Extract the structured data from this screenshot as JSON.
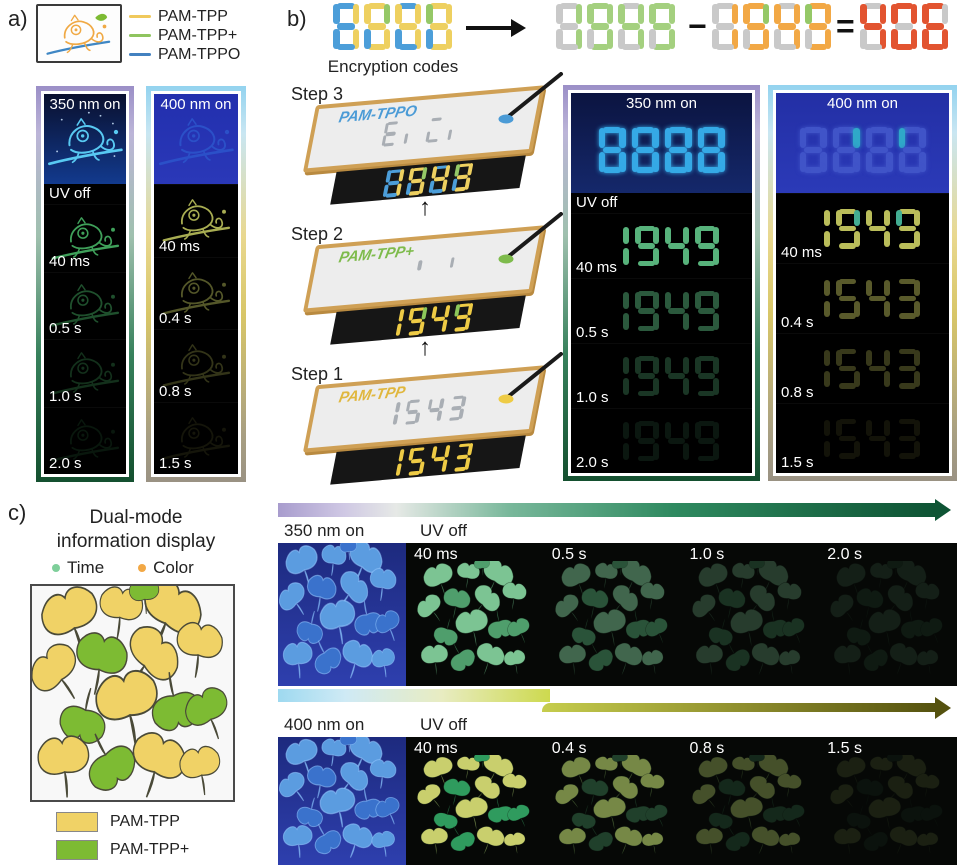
{
  "panels": {
    "a": {
      "label": "a)",
      "legend": [
        {
          "label": "PAM-TPP",
          "color": "#f0c95c"
        },
        {
          "label": "PAM-TPP+",
          "color": "#8fc45f"
        },
        {
          "label": "PAM-TPPO",
          "color": "#4381c0"
        }
      ],
      "columns": [
        {
          "header": "350 nm on",
          "uv_off": "UV off",
          "on_stroke": "#58c9f2",
          "glow_stroke": "#3fa05a",
          "frames": [
            {
              "label": "40 ms",
              "opacity": 1
            },
            {
              "label": "0.5 s",
              "opacity": 0.5
            },
            {
              "label": "1.0 s",
              "opacity": 0.3
            },
            {
              "label": "2.0 s",
              "opacity": 0.14
            }
          ]
        },
        {
          "header": "400 nm on",
          "uv_off": "",
          "on_stroke": "#2b50c8",
          "glow_stroke": "#a8ad52",
          "frames": [
            {
              "label": "40 ms",
              "opacity": 1
            },
            {
              "label": "0.4 s",
              "opacity": 0.5
            },
            {
              "label": "0.8 s",
              "opacity": 0.3
            },
            {
              "label": "1.5 s",
              "opacity": 0.12
            }
          ]
        }
      ]
    },
    "b": {
      "label": "b)",
      "caption": "Encryption codes",
      "minus": "−",
      "equals": "=",
      "up_arrow": "↑",
      "groups": {
        "code": [
          [
            "#4c9ed9",
            "#eed060",
            "#eed060",
            "#4c9ed9",
            "#4c9ed9",
            "#4c9ed9",
            "#4c9ed9"
          ],
          [
            "#eed060",
            "#95c867",
            "#eed060",
            "#eed060",
            "#4c9ed9",
            "#eed060",
            "#eed060"
          ],
          [
            "#4c9ed9",
            "#eed060",
            "#eed060",
            "#4c9ed9",
            "#4c9ed9",
            "#eed060",
            "#eed060"
          ],
          [
            "#eed060",
            "#eed060",
            "#eed060",
            "#eed060",
            "#4c9ed9",
            "#95c867",
            "#eed060"
          ]
        ],
        "green": [
          [
            "#c9c9c9",
            "#a4d07f",
            "#a4d07f",
            "#c9c9c9",
            "#c9c9c9",
            "#c9c9c9",
            "#c9c9c9"
          ],
          [
            "#a4d07f",
            "#a4d07f",
            "#a4d07f",
            "#a4d07f",
            "#c9c9c9",
            "#a4d07f",
            "#a4d07f"
          ],
          [
            "#c9c9c9",
            "#a4d07f",
            "#a4d07f",
            "#c9c9c9",
            "#c9c9c9",
            "#a4d07f",
            "#a4d07f"
          ],
          [
            "#a4d07f",
            "#a4d07f",
            "#a4d07f",
            "#a4d07f",
            "#c9c9c9",
            "#a4d07f",
            "#a4d07f"
          ]
        ],
        "orange": [
          [
            "#c9c9c9",
            "#f2a845",
            "#f2a845",
            "#c9c9c9",
            "#c9c9c9",
            "#c9c9c9",
            "#c9c9c9"
          ],
          [
            "#f2a845",
            "#95c867",
            "#f2a845",
            "#f2a845",
            "#c9c9c9",
            "#f2a845",
            "#f2a845"
          ],
          [
            "#c9c9c9",
            "#f2a845",
            "#f2a845",
            "#c9c9c9",
            "#c9c9c9",
            "#f2a845",
            "#f2a845"
          ],
          [
            "#f2a845",
            "#f2a845",
            "#f2a845",
            "#f2a845",
            "#c9c9c9",
            "#95c867",
            "#f2a845"
          ]
        ],
        "result": [
          [
            "#c9c9c9",
            "#e25430",
            "#e25430",
            "#c9c9c9",
            "#c9c9c9",
            "#e25430",
            "#e25430"
          ],
          [
            "#e25430",
            "#e25430",
            "#e25430",
            "#e25430",
            "#e25430",
            "#e25430",
            "#c9c9c9"
          ],
          [
            "#e25430",
            "#c9c9c9",
            "#e25430",
            "#e25430",
            "#e25430",
            "#e25430",
            "#e25430"
          ]
        ]
      },
      "steps": [
        {
          "label": "Step 3",
          "material": "PAM-TPPO",
          "material_color": "#4b9bd6",
          "ink": "#4b9bd6",
          "stencil": [
            [
              "#a9aeb4",
              "T",
              "T",
              "#a9aeb4",
              "#a9aeb4",
              "#a9aeb4",
              "#a9aeb4"
            ],
            [
              "T",
              "T",
              "T",
              "T",
              "#a9aeb4",
              "T",
              "T"
            ],
            [
              "#a9aeb4",
              "T",
              "T",
              "#a9aeb4",
              "#a9aeb4",
              "T",
              "T"
            ],
            [
              "T",
              "T",
              "T",
              "T",
              "#a9aeb4",
              "T",
              "T"
            ]
          ],
          "display": [
            [
              "#4c9ed9",
              "#eed060",
              "#eed060",
              "#4c9ed9",
              "#4c9ed9",
              "#4c9ed9",
              "#4c9ed9"
            ],
            [
              "#eed060",
              "#95c867",
              "#eed060",
              "#eed060",
              "#4c9ed9",
              "#eed060",
              "#eed060"
            ],
            [
              "#4c9ed9",
              "#eed060",
              "#eed060",
              "#4c9ed9",
              "#4c9ed9",
              "#eed060",
              "#eed060"
            ],
            [
              "#eed060",
              "#eed060",
              "#eed060",
              "#eed060",
              "#4c9ed9",
              "#95c867",
              "#eed060"
            ]
          ]
        },
        {
          "label": "Step 2",
          "material": "PAM-TPP+",
          "material_color": "#7ebb4c",
          "ink": "#7ebb4c",
          "stencil": [
            [
              "T",
              "T",
              "T",
              "T",
              "T",
              "T",
              "T"
            ],
            [
              "T",
              "#a9aeb4",
              "T",
              "T",
              "T",
              "T",
              "T"
            ],
            [
              "T",
              "T",
              "T",
              "T",
              "T",
              "T",
              "T"
            ],
            [
              "T",
              "T",
              "T",
              "T",
              "T",
              "#a9aeb4",
              "T"
            ]
          ],
          "display": [
            [
              "T",
              "#eecb45",
              "#eecb45",
              "T",
              "T",
              "T",
              "T"
            ],
            [
              "#eecb45",
              "#8cc75a",
              "#eecb45",
              "#eecb45",
              "T",
              "#eecb45",
              "#eecb45"
            ],
            [
              "T",
              "#eecb45",
              "#eecb45",
              "T",
              "T",
              "#eecb45",
              "#eecb45"
            ],
            [
              "#eecb45",
              "#eecb45",
              "#eecb45",
              "#eecb45",
              "T",
              "#8cc75a",
              "#eecb45"
            ]
          ]
        },
        {
          "label": "Step 1",
          "material": "PAM-TPP",
          "material_color": "#e0b73e",
          "ink": "#eecb45",
          "stencil": [
            [
              "T",
              "#a9aeb4",
              "#a9aeb4",
              "T",
              "T",
              "T",
              "T"
            ],
            [
              "#a9aeb4",
              "T",
              "#a9aeb4",
              "#a9aeb4",
              "T",
              "#a9aeb4",
              "#a9aeb4"
            ],
            [
              "T",
              "#a9aeb4",
              "#a9aeb4",
              "T",
              "T",
              "#a9aeb4",
              "#a9aeb4"
            ],
            [
              "#a9aeb4",
              "#a9aeb4",
              "#a9aeb4",
              "#a9aeb4",
              "T",
              "T",
              "#a9aeb4"
            ]
          ],
          "display": [
            [
              "T",
              "#eecb45",
              "#eecb45",
              "T",
              "T",
              "T",
              "T"
            ],
            [
              "#eecb45",
              "T",
              "#eecb45",
              "#eecb45",
              "T",
              "#eecb45",
              "#eecb45"
            ],
            [
              "T",
              "#eecb45",
              "#eecb45",
              "T",
              "T",
              "#eecb45",
              "#eecb45"
            ],
            [
              "#eecb45",
              "#eecb45",
              "#eecb45",
              "#eecb45",
              "T",
              "T",
              "#eecb45"
            ]
          ]
        }
      ],
      "columns": [
        {
          "header": "350 nm on",
          "uv_off": "UV off",
          "on_digits": [
            [
              "#35a9e6",
              "#35a9e6",
              "#35a9e6",
              "#35a9e6",
              "#35a9e6",
              "#35a9e6",
              "#35a9e6"
            ],
            [
              "#35a9e6",
              "#35a9e6",
              "#35a9e6",
              "#35a9e6",
              "#35a9e6",
              "#35a9e6",
              "#35a9e6"
            ],
            [
              "#35a9e6",
              "#35a9e6",
              "#35a9e6",
              "#35a9e6",
              "#35a9e6",
              "#35a9e6",
              "#35a9e6"
            ],
            [
              "#35a9e6",
              "#35a9e6",
              "#35a9e6",
              "#35a9e6",
              "#35a9e6",
              "#35a9e6",
              "#35a9e6"
            ]
          ],
          "digits_first": [
            [
              "T",
              "#57b27b",
              "#57b27b",
              "T",
              "T",
              "T",
              "T"
            ],
            [
              "#57b27b",
              "#57b27b",
              "#57b27b",
              "#57b27b",
              "T",
              "#57b27b",
              "#57b27b"
            ],
            [
              "T",
              "#57b27b",
              "#57b27b",
              "T",
              "T",
              "#57b27b",
              "#57b27b"
            ],
            [
              "#57b27b",
              "#57b27b",
              "#57b27b",
              "#57b27b",
              "T",
              "#57b27b",
              "#57b27b"
            ]
          ],
          "digits_rest": [
            [
              "T",
              "#57b27b",
              "#57b27b",
              "T",
              "T",
              "T",
              "T"
            ],
            [
              "#57b27b",
              "#57b27b",
              "#57b27b",
              "#57b27b",
              "T",
              "#57b27b",
              "#57b27b"
            ],
            [
              "T",
              "#57b27b",
              "#57b27b",
              "T",
              "T",
              "#57b27b",
              "#57b27b"
            ],
            [
              "#57b27b",
              "#57b27b",
              "#57b27b",
              "#57b27b",
              "T",
              "#57b27b",
              "#57b27b"
            ]
          ],
          "frames": [
            {
              "label": "40 ms",
              "opacity": 1
            },
            {
              "label": "0.5 s",
              "opacity": 0.5
            },
            {
              "label": "1.0 s",
              "opacity": 0.3
            },
            {
              "label": "2.0 s",
              "opacity": 0.13
            }
          ]
        },
        {
          "header": "400 nm on",
          "uv_off": "",
          "on_digits": [
            [
              "#4054c8",
              "#4054c8",
              "#4054c8",
              "#4054c8",
              "#4054c8",
              "#4054c8",
              "#4054c8"
            ],
            [
              "#4054c8",
              "#2fa8c8",
              "#4054c8",
              "#4054c8",
              "#4054c8",
              "#4054c8",
              "#4054c8"
            ],
            [
              "#4054c8",
              "#4054c8",
              "#4054c8",
              "#4054c8",
              "#4054c8",
              "#4054c8",
              "#4054c8"
            ],
            [
              "#4054c8",
              "#4054c8",
              "#4054c8",
              "#4054c8",
              "#4054c8",
              "#2fa8c8",
              "#4054c8"
            ]
          ],
          "digits_first": [
            [
              "T",
              "#babd5a",
              "#babd5a",
              "T",
              "T",
              "T",
              "T"
            ],
            [
              "#babd5a",
              "#43ad92",
              "#babd5a",
              "#babd5a",
              "T",
              "#babd5a",
              "#babd5a"
            ],
            [
              "T",
              "#babd5a",
              "#babd5a",
              "T",
              "T",
              "#babd5a",
              "#babd5a"
            ],
            [
              "#babd5a",
              "#babd5a",
              "#babd5a",
              "#babd5a",
              "T",
              "#43ad92",
              "#babd5a"
            ]
          ],
          "digits_rest": [
            [
              "T",
              "#babd5a",
              "#babd5a",
              "T",
              "T",
              "T",
              "T"
            ],
            [
              "#babd5a",
              "T",
              "#babd5a",
              "#babd5a",
              "T",
              "#babd5a",
              "#babd5a"
            ],
            [
              "T",
              "#babd5a",
              "#babd5a",
              "T",
              "T",
              "#babd5a",
              "#babd5a"
            ],
            [
              "#babd5a",
              "#babd5a",
              "#babd5a",
              "#babd5a",
              "T",
              "T",
              "#babd5a"
            ]
          ],
          "frames": [
            {
              "label": "40 ms",
              "opacity": 1
            },
            {
              "label": "0.4 s",
              "opacity": 0.48
            },
            {
              "label": "0.8 s",
              "opacity": 0.3
            },
            {
              "label": "1.5 s",
              "opacity": 0.1
            }
          ]
        }
      ]
    },
    "c": {
      "label": "c)",
      "title_line1": "Dual-mode",
      "title_line2": "information display",
      "bullets": [
        {
          "label": "Time",
          "color": "#7ecf9a"
        },
        {
          "label": "Color",
          "color": "#f2a845"
        }
      ],
      "legend": [
        {
          "label": "PAM-TPP",
          "color": "#f0d266"
        },
        {
          "label": "PAM-TPP+",
          "color": "#7dbb33"
        }
      ],
      "diagram_palette": [
        "#f0d266",
        "#7dbb33"
      ],
      "uv_palette": [
        "#5b9ce0",
        "#3a72cc"
      ],
      "rows": [
        {
          "on_label": "350 nm on",
          "uv_label": "UV off",
          "frames": [
            {
              "label": "40 ms",
              "opacity": 1,
              "palette": [
                "#7cc493",
                "#4f9e6c"
              ]
            },
            {
              "label": "0.5 s",
              "opacity": 0.5,
              "palette": [
                "#7cc493",
                "#4f9e6c"
              ]
            },
            {
              "label": "1.0 s",
              "opacity": 0.28,
              "palette": [
                "#7cc493",
                "#4f9e6c"
              ]
            },
            {
              "label": "2.0 s",
              "opacity": 0.12,
              "palette": [
                "#7cc493",
                "#4f9e6c"
              ]
            }
          ]
        },
        {
          "on_label": "400 nm on",
          "uv_label": "UV off",
          "frames": [
            {
              "label": "40 ms",
              "opacity": 1,
              "palette": [
                "#c9cf6d",
                "#2f9b5e"
              ]
            },
            {
              "label": "0.4 s",
              "opacity": 0.8,
              "palette": [
                "#93a957",
                "#274f35"
              ]
            },
            {
              "label": "0.8 s",
              "opacity": 0.45,
              "palette": [
                "#93a957",
                "#274f35"
              ]
            },
            {
              "label": "1.5 s",
              "opacity": 0.15,
              "palette": [
                "#93a957",
                "#274f35"
              ]
            }
          ]
        }
      ]
    }
  }
}
